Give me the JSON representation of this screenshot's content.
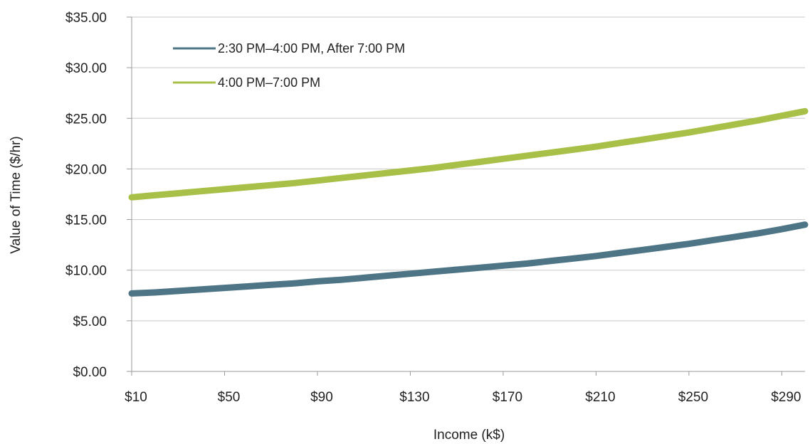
{
  "chart_data": {
    "type": "line",
    "title": "",
    "xlabel": "Income (k$)",
    "ylabel": "Value of Time ($/hr)",
    "x": [
      10,
      20,
      30,
      40,
      50,
      60,
      70,
      80,
      90,
      100,
      110,
      120,
      130,
      140,
      150,
      160,
      170,
      180,
      190,
      200,
      210,
      220,
      230,
      240,
      250,
      260,
      270,
      280,
      290,
      300
    ],
    "x_tick_values": [
      10,
      50,
      90,
      130,
      170,
      210,
      250,
      290
    ],
    "x_tick_labels": [
      "$10",
      "$50",
      "$90",
      "$130",
      "$170",
      "$210",
      "$250",
      "$290"
    ],
    "xlim": [
      10,
      300
    ],
    "y_tick_values": [
      0,
      5,
      10,
      15,
      20,
      25,
      30,
      35
    ],
    "y_tick_labels": [
      "$0.00",
      "$5.00",
      "$10.00",
      "$15.00",
      "$20.00",
      "$25.00",
      "$30.00",
      "$35.00"
    ],
    "ylim": [
      0,
      35
    ],
    "grid": "horizontal",
    "legend_position": "top-left",
    "series": [
      {
        "name": "2:30 PM–4:00 PM, After 7:00 PM",
        "color": "#4e7585",
        "values": [
          7.7,
          7.8,
          7.95,
          8.1,
          8.25,
          8.4,
          8.55,
          8.7,
          8.9,
          9.05,
          9.25,
          9.45,
          9.65,
          9.85,
          10.05,
          10.25,
          10.45,
          10.65,
          10.9,
          11.15,
          11.4,
          11.7,
          12.0,
          12.3,
          12.6,
          12.95,
          13.3,
          13.65,
          14.05,
          14.5
        ]
      },
      {
        "name": "4:00 PM–7:00 PM",
        "color": "#a8c048",
        "values": [
          17.2,
          17.4,
          17.6,
          17.8,
          18.0,
          18.2,
          18.4,
          18.6,
          18.85,
          19.1,
          19.35,
          19.6,
          19.85,
          20.1,
          20.4,
          20.7,
          21.0,
          21.3,
          21.6,
          21.9,
          22.2,
          22.55,
          22.9,
          23.25,
          23.6,
          24.0,
          24.4,
          24.8,
          25.25,
          25.7
        ]
      }
    ]
  }
}
